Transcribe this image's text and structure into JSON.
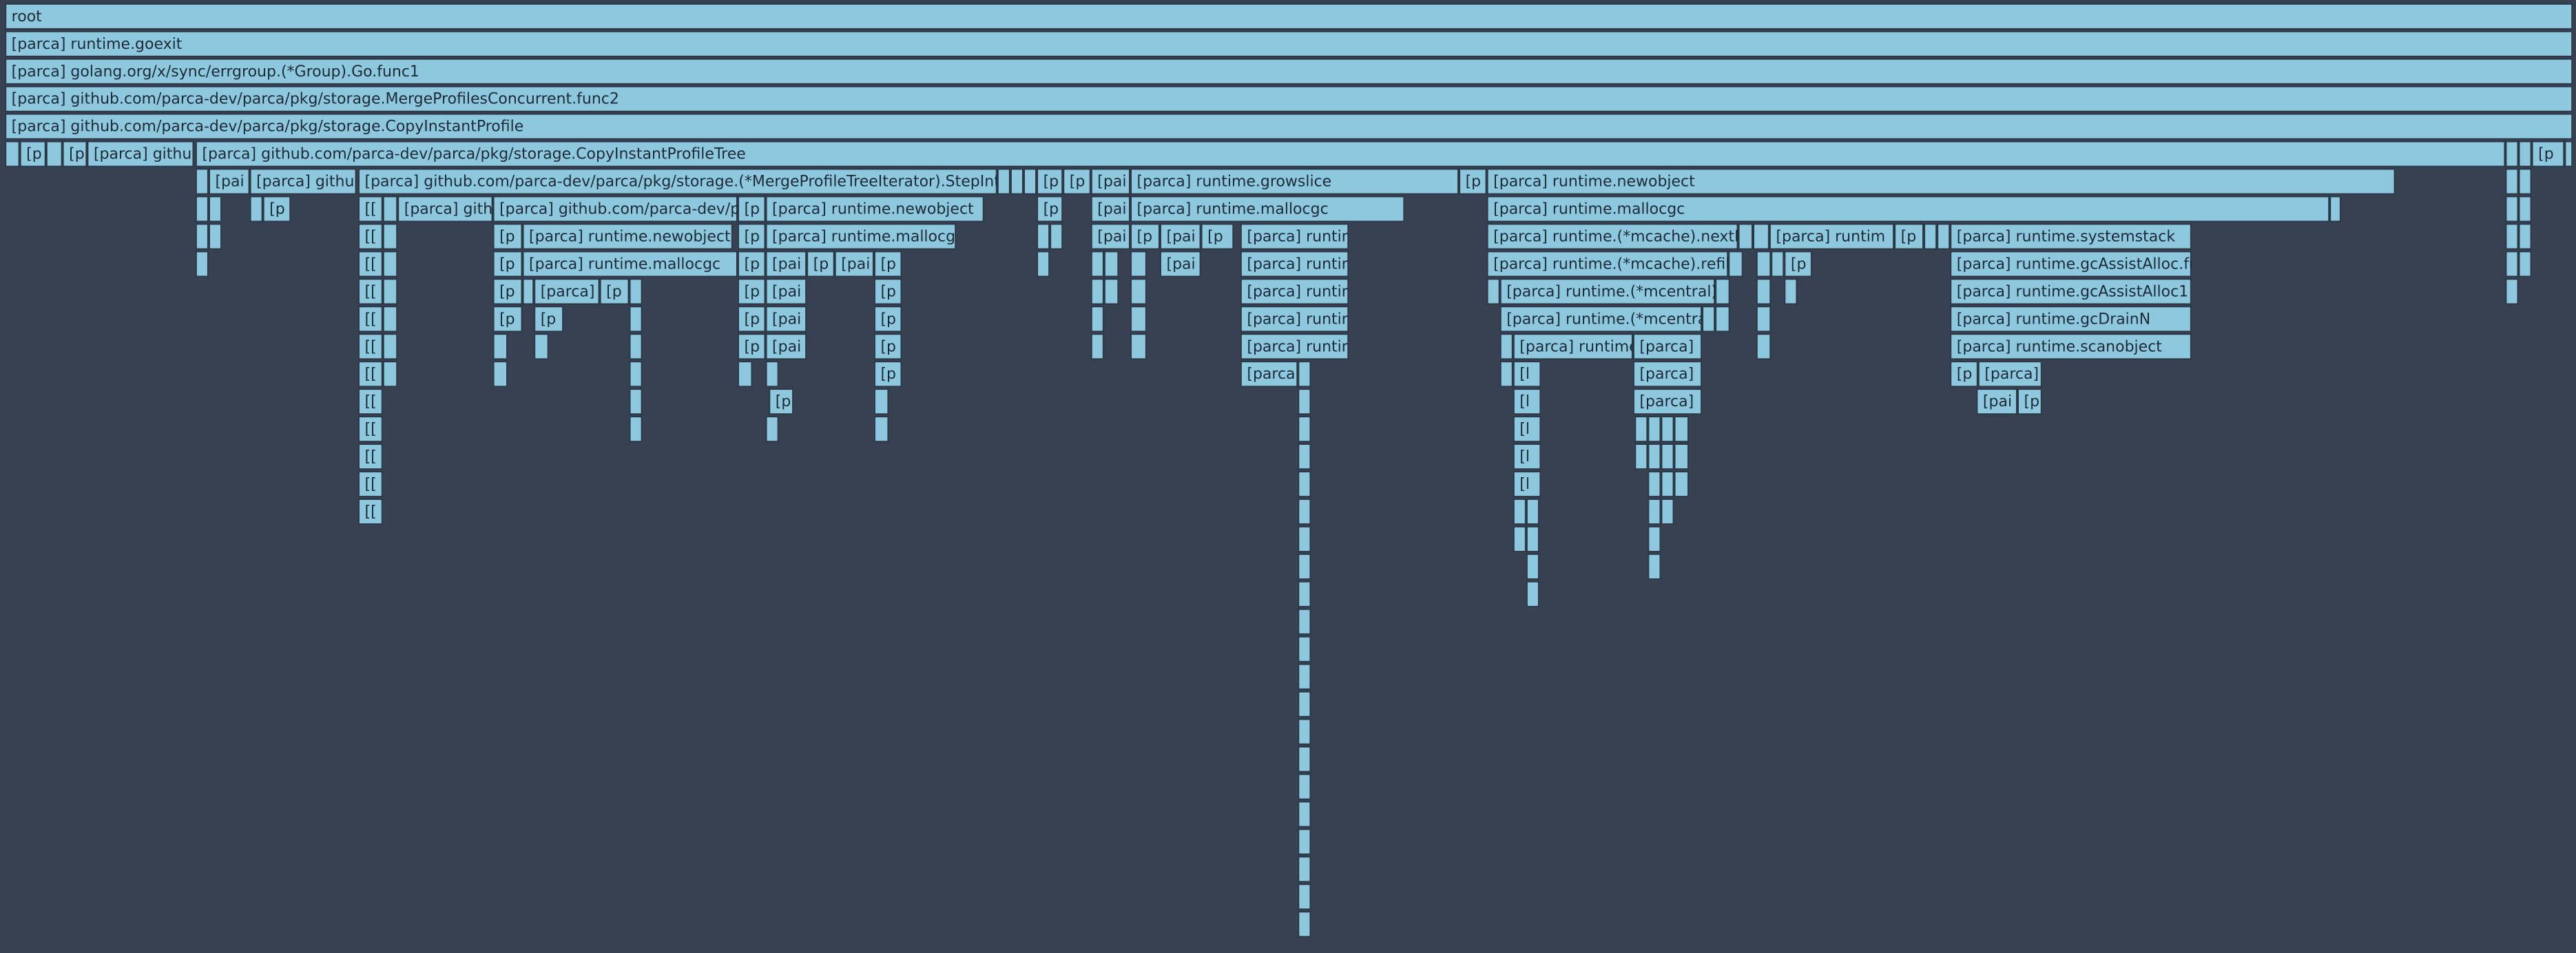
{
  "frames": [
    {
      "label": "root"
    },
    {
      "label": "[parca] runtime.goexit"
    },
    {
      "label": "[parca] golang.org/x/sync/errgroup.(*Group).Go.func1"
    },
    {
      "label": "[parca] github.com/parca-dev/parca/pkg/storage.MergeProfilesConcurrent.func2"
    },
    {
      "label": "[parca] github.com/parca-dev/parca/pkg/storage.CopyInstantProfile"
    },
    {
      "label": "[p"
    },
    {
      "label": "[p"
    },
    {
      "label": "[parca] githu"
    },
    {
      "label": "[parca] github.com/parca-dev/parca/pkg/storage.CopyInstantProfileTree"
    },
    {
      "label": "[p"
    },
    {
      "label": "[pai"
    },
    {
      "label": "[parca] githu"
    },
    {
      "label": "[parca] github.com/parca-dev/parca/pkg/storage.(*MergeProfileTreeIterator).StepInt"
    },
    {
      "label": "[p"
    },
    {
      "label": "[p"
    },
    {
      "label": "[pai"
    },
    {
      "label": "[parca] runtime.growslice"
    },
    {
      "label": "[p"
    },
    {
      "label": "[parca] runtime.newobject"
    },
    {
      "label": "[p"
    },
    {
      "label": "[["
    },
    {
      "label": "[parca] gith"
    },
    {
      "label": "[parca] github.com/parca-dev/p"
    },
    {
      "label": "[p"
    },
    {
      "label": "[parca] runtime.newobject"
    },
    {
      "label": "[p"
    },
    {
      "label": "[pai"
    },
    {
      "label": "[parca] runtime.mallocgc"
    },
    {
      "label": "[parca] runtime.mallocgc"
    },
    {
      "label": "[["
    },
    {
      "label": "[p"
    },
    {
      "label": "[parca] runtime.newobject"
    },
    {
      "label": "[p"
    },
    {
      "label": "[parca] runtime.mallocg"
    },
    {
      "label": "[pai"
    },
    {
      "label": "[p"
    },
    {
      "label": "[pai"
    },
    {
      "label": "[p"
    },
    {
      "label": "[parca] runtir"
    },
    {
      "label": "[parca] runtime.(*mcache).nextFr"
    },
    {
      "label": "[parca] runtim"
    },
    {
      "label": "[p"
    },
    {
      "label": "[parca] runtime.systemstack"
    },
    {
      "label": "[["
    },
    {
      "label": "[p"
    },
    {
      "label": "[parca] runtime.mallocgc"
    },
    {
      "label": "[p"
    },
    {
      "label": "[pai"
    },
    {
      "label": "[p"
    },
    {
      "label": "[pai"
    },
    {
      "label": "[p"
    },
    {
      "label": "[pai"
    },
    {
      "label": "[parca] runtir"
    },
    {
      "label": "[parca] runtime.(*mcache).refill"
    },
    {
      "label": "[p"
    },
    {
      "label": "[parca] runtime.gcAssistAlloc.fu"
    },
    {
      "label": "[["
    },
    {
      "label": "[p"
    },
    {
      "label": "[parca]"
    },
    {
      "label": "[p"
    },
    {
      "label": "[p"
    },
    {
      "label": "[pai"
    },
    {
      "label": "[p"
    },
    {
      "label": "[parca] runtir"
    },
    {
      "label": "[parca] runtime.(*mcentral)."
    },
    {
      "label": "[parca] runtime.gcAssistAlloc1"
    },
    {
      "label": "[["
    },
    {
      "label": "[p"
    },
    {
      "label": "[p"
    },
    {
      "label": "[p"
    },
    {
      "label": "[pai"
    },
    {
      "label": "[p"
    },
    {
      "label": "[parca] runtir"
    },
    {
      "label": "[parca] runtime.(*mcentra"
    },
    {
      "label": "[parca] runtime.gcDrainN"
    },
    {
      "label": "[["
    },
    {
      "label": "[p"
    },
    {
      "label": "[pai"
    },
    {
      "label": "[p"
    },
    {
      "label": "[parca] runtir"
    },
    {
      "label": "[parca] runtime"
    },
    {
      "label": "[parca]"
    },
    {
      "label": "[parca] runtime.scanobject"
    },
    {
      "label": "[["
    },
    {
      "label": "[p"
    },
    {
      "label": "[parca"
    },
    {
      "label": "[l"
    },
    {
      "label": "[parca]"
    },
    {
      "label": "[p"
    },
    {
      "label": "[parca]"
    },
    {
      "label": "[["
    },
    {
      "label": "[p"
    },
    {
      "label": "[l"
    },
    {
      "label": "[parca]"
    },
    {
      "label": "[pai"
    },
    {
      "label": "[p"
    },
    {
      "label": "[["
    },
    {
      "label": "[l"
    },
    {
      "label": "[["
    },
    {
      "label": "[l"
    },
    {
      "label": "[["
    },
    {
      "label": "[l"
    },
    {
      "label": "[["
    }
  ]
}
